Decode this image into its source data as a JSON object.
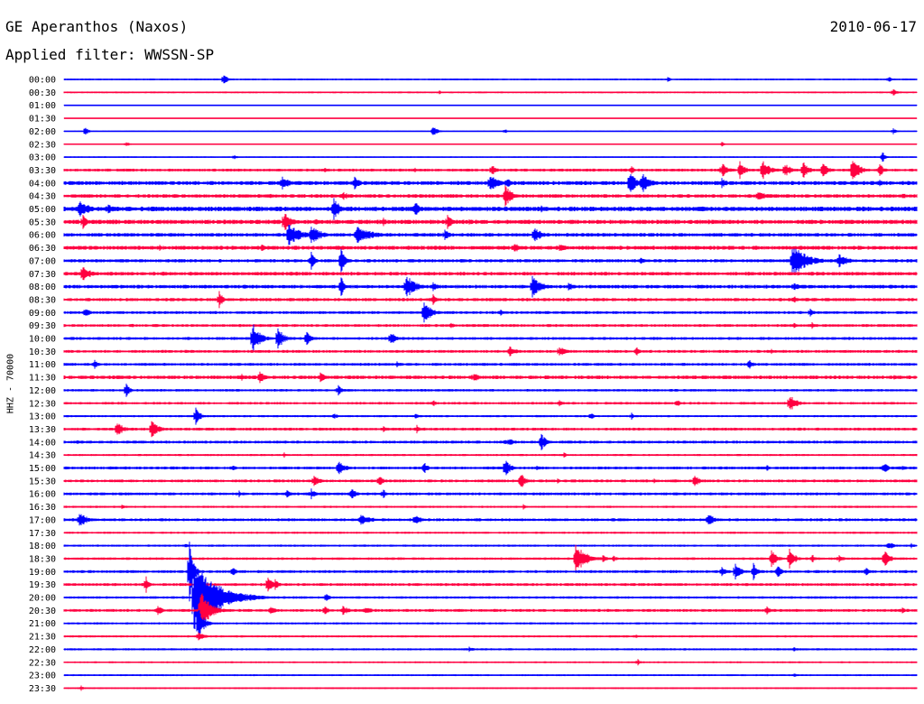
{
  "header": {
    "station": "GE Aperanthos (Naxos)",
    "date": "2010-06-17",
    "filter": "Applied filter: WWSSN-SP"
  },
  "axis": {
    "ylabel": "HHZ - 70000"
  },
  "colors": {
    "even": "#0000ff",
    "odd": "#ff0040"
  },
  "chart_data": {
    "type": "line",
    "title": "GE Aperanthos (Naxos)",
    "subtitle": "Applied filter: WWSSN-SP",
    "ylabel": "HHZ - 70000",
    "categories": [
      "00:00",
      "00:30",
      "01:00",
      "01:30",
      "02:00",
      "02:30",
      "03:00",
      "03:30",
      "04:00",
      "04:30",
      "05:00",
      "05:30",
      "06:00",
      "06:30",
      "07:00",
      "07:30",
      "08:00",
      "08:30",
      "09:00",
      "09:30",
      "10:00",
      "10:30",
      "11:00",
      "11:30",
      "12:00",
      "12:30",
      "13:00",
      "13:30",
      "14:00",
      "14:30",
      "15:00",
      "15:30",
      "16:00",
      "16:30",
      "17:00",
      "17:30",
      "18:00",
      "18:30",
      "19:00",
      "19:30",
      "20:00",
      "20:30",
      "21:00",
      "21:30",
      "22:00",
      "22:30",
      "23:00",
      "23:30"
    ],
    "noise": [
      1,
      1,
      0.5,
      0.5,
      0.6,
      0.8,
      0.8,
      1.6,
      2.2,
      2.0,
      2.6,
      2.4,
      2.0,
      2.2,
      1.8,
      2.0,
      2.0,
      1.8,
      1.6,
      1.6,
      1.6,
      1.6,
      1.6,
      2.0,
      1.4,
      1.4,
      1.2,
      1.6,
      1.6,
      1.2,
      1.6,
      1.6,
      1.6,
      1.2,
      1.6,
      1.2,
      1.2,
      1.4,
      1.6,
      1.6,
      1.4,
      1.6,
      1.2,
      1.2,
      1.2,
      1.0,
      1.0,
      1.0
    ],
    "events": [
      [
        [
          248,
          6,
          5
        ],
        [
          740,
          3,
          4
        ],
        [
          985,
          4,
          3
        ]
      ],
      [
        [
          990,
          5,
          4
        ],
        [
          487,
          3,
          2
        ]
      ],
      [],
      [],
      [
        [
          95,
          6,
          3
        ],
        [
          480,
          7,
          5
        ],
        [
          560,
          3,
          3
        ],
        [
          990,
          4,
          4
        ]
      ],
      [
        [
          140,
          3,
          4
        ],
        [
          800,
          3,
          3
        ]
      ],
      [
        [
          978,
          6,
          4
        ],
        [
          260,
          3,
          3
        ]
      ],
      [
        [
          545,
          7,
          5
        ],
        [
          800,
          8,
          8
        ],
        [
          820,
          10,
          6
        ],
        [
          845,
          12,
          8
        ],
        [
          870,
          9,
          6
        ],
        [
          890,
          10,
          7
        ],
        [
          912,
          9,
          6
        ],
        [
          945,
          14,
          8
        ],
        [
          975,
          8,
          5
        ],
        [
          700,
          5,
          4
        ],
        [
          360,
          3,
          4
        ],
        [
          460,
          3,
          3
        ]
      ],
      [
        [
          313,
          8,
          8
        ],
        [
          393,
          8,
          6
        ],
        [
          543,
          10,
          9
        ],
        [
          562,
          6,
          5
        ],
        [
          698,
          12,
          8
        ],
        [
          712,
          12,
          8
        ],
        [
          800,
          6,
          6
        ],
        [
          975,
          5,
          4
        ]
      ],
      [
        [
          300,
          4,
          5
        ],
        [
          380,
          5,
          8
        ],
        [
          560,
          12,
          8
        ],
        [
          840,
          6,
          12
        ],
        [
          1000,
          4,
          6
        ]
      ],
      [
        [
          88,
          10,
          12
        ],
        [
          120,
          6,
          8
        ],
        [
          370,
          14,
          6
        ],
        [
          460,
          9,
          6
        ],
        [
          600,
          4,
          4
        ],
        [
          810,
          3,
          6
        ]
      ],
      [
        [
          92,
          8,
          5
        ],
        [
          315,
          12,
          8
        ],
        [
          350,
          4,
          4
        ],
        [
          425,
          5,
          4
        ],
        [
          496,
          8,
          6
        ],
        [
          520,
          4,
          6
        ]
      ],
      [
        [
          320,
          12,
          14
        ],
        [
          345,
          10,
          12
        ],
        [
          395,
          10,
          18
        ],
        [
          493,
          6,
          6
        ],
        [
          592,
          10,
          8
        ]
      ],
      [
        [
          177,
          4,
          3
        ],
        [
          290,
          4,
          6
        ],
        [
          570,
          5,
          12
        ],
        [
          620,
          5,
          10
        ]
      ],
      [
        [
          378,
          16,
          4
        ],
        [
          345,
          10,
          4
        ],
        [
          878,
          18,
          16
        ],
        [
          930,
          8,
          10
        ],
        [
          710,
          4,
          6
        ]
      ],
      [
        [
          92,
          10,
          8
        ],
        [
          180,
          3,
          6
        ]
      ],
      [
        [
          378,
          14,
          3
        ],
        [
          450,
          14,
          10
        ],
        [
          480,
          6,
          6
        ],
        [
          590,
          12,
          10
        ],
        [
          630,
          5,
          8
        ],
        [
          880,
          6,
          5
        ]
      ],
      [
        [
          243,
          10,
          4
        ],
        [
          480,
          6,
          4
        ],
        [
          880,
          5,
          4
        ]
      ],
      [
        [
          95,
          6,
          5
        ],
        [
          470,
          14,
          8
        ],
        [
          555,
          4,
          3
        ],
        [
          898,
          6,
          4
        ]
      ],
      [
        [
          146,
          3,
          3
        ],
        [
          500,
          4,
          4
        ],
        [
          880,
          3,
          4
        ],
        [
          900,
          4,
          4
        ]
      ],
      [
        [
          280,
          18,
          8
        ],
        [
          308,
          14,
          6
        ],
        [
          340,
          8,
          5
        ],
        [
          433,
          8,
          6
        ]
      ],
      [
        [
          565,
          6,
          8
        ],
        [
          620,
          6,
          8
        ],
        [
          705,
          6,
          4
        ],
        [
          855,
          3,
          3
        ]
      ],
      [
        [
          105,
          5,
          4
        ],
        [
          440,
          4,
          6
        ],
        [
          830,
          6,
          5
        ]
      ],
      [
        [
          268,
          4,
          6
        ],
        [
          288,
          8,
          5
        ],
        [
          355,
          6,
          6
        ],
        [
          525,
          6,
          6
        ],
        [
          990,
          3,
          10
        ]
      ],
      [
        [
          140,
          8,
          4
        ],
        [
          375,
          6,
          5
        ]
      ],
      [
        [
          480,
          5,
          4
        ],
        [
          620,
          4,
          4
        ],
        [
          875,
          10,
          8
        ],
        [
          750,
          4,
          6
        ]
      ],
      [
        [
          217,
          10,
          5
        ],
        [
          370,
          4,
          4
        ],
        [
          460,
          3,
          6
        ],
        [
          655,
          4,
          4
        ],
        [
          700,
          4,
          3
        ]
      ],
      [
        [
          130,
          8,
          8
        ],
        [
          168,
          10,
          8
        ],
        [
          462,
          6,
          4
        ],
        [
          425,
          4,
          4
        ]
      ],
      [
        [
          565,
          6,
          5
        ],
        [
          600,
          10,
          5
        ],
        [
          560,
          4,
          4
        ],
        [
          85,
          3,
          4
        ]
      ],
      [
        [
          315,
          3,
          4
        ],
        [
          625,
          3,
          4
        ]
      ],
      [
        [
          258,
          4,
          4
        ],
        [
          375,
          8,
          8
        ],
        [
          470,
          7,
          5
        ],
        [
          560,
          10,
          6
        ],
        [
          595,
          4,
          4
        ],
        [
          980,
          6,
          5
        ],
        [
          1000,
          4,
          4
        ],
        [
          850,
          4,
          3
        ]
      ],
      [
        [
          348,
          8,
          6
        ],
        [
          420,
          6,
          6
        ],
        [
          577,
          10,
          5
        ],
        [
          618,
          3,
          3
        ],
        [
          770,
          8,
          5
        ],
        [
          725,
          3,
          4
        ]
      ],
      [
        [
          265,
          4,
          2
        ],
        [
          318,
          6,
          5
        ],
        [
          345,
          6,
          5
        ],
        [
          390,
          7,
          5
        ],
        [
          425,
          6,
          3
        ]
      ],
      [
        [
          135,
          3,
          4
        ],
        [
          580,
          3,
          4
        ]
      ],
      [
        [
          88,
          8,
          10
        ],
        [
          400,
          6,
          14
        ],
        [
          460,
          6,
          8
        ],
        [
          785,
          7,
          8
        ]
      ],
      [],
      [
        [
          205,
          3,
          4
        ],
        [
          985,
          5,
          6
        ],
        [
          1010,
          3,
          4
        ]
      ],
      [
        [
          638,
          16,
          12
        ],
        [
          668,
          5,
          5
        ],
        [
          680,
          4,
          4
        ],
        [
          855,
          10,
          6
        ],
        [
          875,
          12,
          6
        ],
        [
          900,
          5,
          5
        ],
        [
          930,
          4,
          6
        ],
        [
          980,
          10,
          6
        ]
      ],
      [
        [
          210,
          34,
          4
        ],
        [
          258,
          6,
          4
        ],
        [
          800,
          6,
          6
        ],
        [
          815,
          10,
          6
        ],
        [
          835,
          10,
          4
        ],
        [
          862,
          8,
          5
        ],
        [
          960,
          5,
          4
        ]
      ],
      [
        [
          162,
          10,
          3
        ],
        [
          297,
          10,
          5
        ],
        [
          305,
          6,
          5
        ]
      ],
      [
        [
          215,
          40,
          26
        ],
        [
          228,
          20,
          10
        ],
        [
          362,
          6,
          4
        ]
      ],
      [
        [
          175,
          6,
          5
        ],
        [
          222,
          26,
          10
        ],
        [
          300,
          5,
          8
        ],
        [
          360,
          5,
          5
        ],
        [
          380,
          5,
          8
        ],
        [
          405,
          5,
          8
        ],
        [
          850,
          6,
          3
        ],
        [
          1000,
          4,
          4
        ]
      ],
      [
        [
          220,
          18,
          6
        ]
      ],
      [
        [
          220,
          6,
          6
        ],
        [
          705,
          3,
          3
        ]
      ],
      [
        [
          520,
          3,
          6
        ],
        [
          880,
          3,
          4
        ]
      ],
      [
        [
          707,
          4,
          3
        ]
      ],
      [
        [
          880,
          3,
          3
        ]
      ],
      [
        [
          90,
          3,
          3
        ]
      ]
    ]
  }
}
